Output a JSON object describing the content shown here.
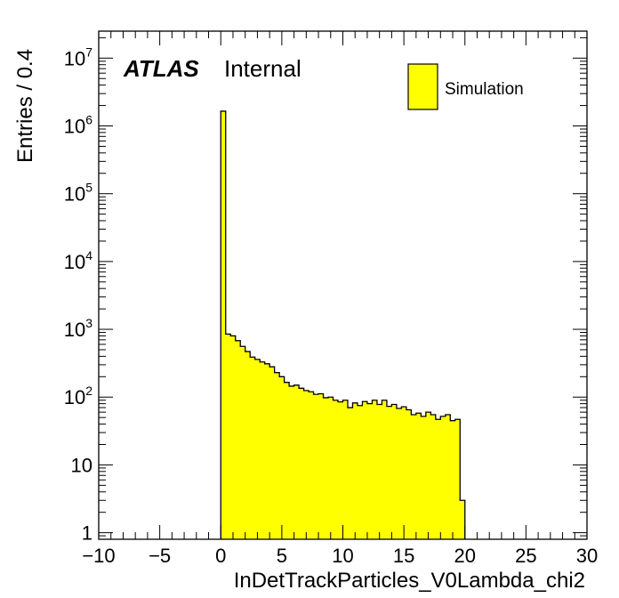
{
  "chart_data": {
    "type": "histogram",
    "xlabel": "InDetTrackParticles_V0Lambda_chi2",
    "ylabel": "Entries / 0.4",
    "xlim": [
      -10,
      30
    ],
    "ylim": [
      0.8,
      25000000
    ],
    "y_scale": "log",
    "x_ticks": [
      -10,
      -5,
      0,
      5,
      10,
      15,
      20,
      25,
      30
    ],
    "x_tick_labels": [
      "−10",
      "−5",
      "0",
      "5",
      "10",
      "15",
      "20",
      "25",
      "30"
    ],
    "y_ticks": [
      {
        "value": 1,
        "base": "1",
        "exp": ""
      },
      {
        "value": 10,
        "base": "10",
        "exp": ""
      },
      {
        "value": 100,
        "base": "10",
        "exp": "2"
      },
      {
        "value": 1000,
        "base": "10",
        "exp": "3"
      },
      {
        "value": 10000,
        "base": "10",
        "exp": "4"
      },
      {
        "value": 100000,
        "base": "10",
        "exp": "5"
      },
      {
        "value": 1000000,
        "base": "10",
        "exp": "6"
      },
      {
        "value": 10000000,
        "base": "10",
        "exp": "7"
      }
    ],
    "bin_width": 0.4,
    "series": [
      {
        "name": "Simulation",
        "color": "#ffff00",
        "bin_start": 0,
        "values": [
          1650000,
          850,
          800,
          680,
          560,
          470,
          390,
          360,
          330,
          310,
          280,
          230,
          200,
          165,
          145,
          150,
          135,
          125,
          120,
          110,
          112,
          98,
          100,
          90,
          85,
          90,
          70,
          82,
          75,
          86,
          80,
          90,
          78,
          90,
          73,
          78,
          68,
          72,
          65,
          55,
          58,
          52,
          60,
          55,
          47,
          52,
          55,
          45,
          47,
          3
        ]
      }
    ],
    "labels": {
      "experiment": "ATLAS",
      "status": "Internal"
    },
    "legend_position": "top-right"
  }
}
